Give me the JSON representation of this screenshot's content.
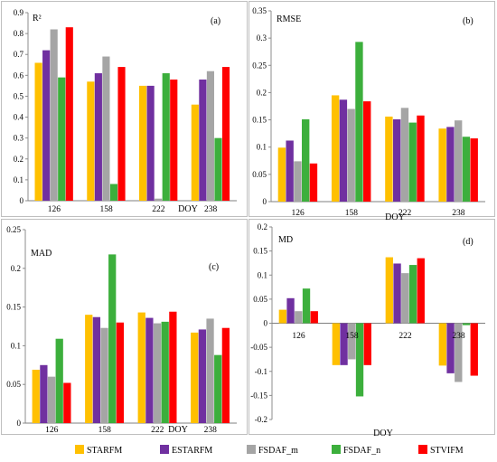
{
  "figure": {
    "xlabel": "DOY",
    "legend": [
      "STARFM",
      "ESTARFM",
      "FSDAF_m",
      "FSDAF_n",
      "STVIFM"
    ],
    "legend_position": "bottom"
  },
  "colors": {
    "series": [
      "#ffc000",
      "#7030a0",
      "#a5a5a5",
      "#3caf3c",
      "#ff0000"
    ],
    "frame": "#bfbfbf",
    "axis": "#8c8c8c",
    "zero_line": "#7f7f7f"
  },
  "chart_data": [
    {
      "type": "bar",
      "panel_label": "(a)",
      "title": "R²",
      "xlabel": "DOY",
      "categories": [
        "126",
        "158",
        "222",
        "238"
      ],
      "ylim": [
        0,
        0.9
      ],
      "ytick_step": 0.1,
      "ytick_decimals": 1,
      "ytick_labels": [
        "0",
        "0.1",
        "0.2",
        "0.3",
        "0.4",
        "0.5",
        "0.6",
        "0.7",
        "0.8",
        "0.9"
      ],
      "category_labels_position": "bottom",
      "series": [
        {
          "name": "STARFM",
          "values": [
            0.66,
            0.57,
            0.55,
            0.46
          ]
        },
        {
          "name": "ESTARFM",
          "values": [
            0.72,
            0.61,
            0.55,
            0.58
          ]
        },
        {
          "name": "FSDAF_m",
          "values": [
            0.82,
            0.69,
            0.01,
            0.62
          ]
        },
        {
          "name": "FSDAF_n",
          "values": [
            0.59,
            0.08,
            0.61,
            0.3
          ]
        },
        {
          "name": "STVIFM",
          "values": [
            0.83,
            0.64,
            0.58,
            0.64
          ]
        }
      ]
    },
    {
      "type": "bar",
      "panel_label": "(b)",
      "title": "RMSE",
      "xlabel": "DOY",
      "categories": [
        "126",
        "158",
        "222",
        "238"
      ],
      "ylim": [
        0,
        0.35
      ],
      "ytick_step": 0.05,
      "ytick_decimals": 2,
      "ytick_labels": [
        "0",
        "0.05",
        "0.1",
        "0.15",
        "0.2",
        "0.25",
        "0.3",
        "0.35"
      ],
      "category_labels_position": "bottom",
      "series": [
        {
          "name": "STARFM",
          "values": [
            0.099,
            0.195,
            0.156,
            0.134
          ]
        },
        {
          "name": "ESTARFM",
          "values": [
            0.112,
            0.187,
            0.151,
            0.137
          ]
        },
        {
          "name": "FSDAF_m",
          "values": [
            0.074,
            0.17,
            0.172,
            0.149
          ]
        },
        {
          "name": "FSDAF_n",
          "values": [
            0.151,
            0.293,
            0.145,
            0.119
          ]
        },
        {
          "name": "STVIFM",
          "values": [
            0.07,
            0.184,
            0.158,
            0.116
          ]
        }
      ]
    },
    {
      "type": "bar",
      "panel_label": "(c)",
      "title": "MAD",
      "xlabel": "DOY",
      "categories": [
        "126",
        "158",
        "222",
        "238"
      ],
      "ylim": [
        0,
        0.25
      ],
      "ytick_step": 0.05,
      "ytick_decimals": 2,
      "ytick_labels": [
        "0",
        "0.05",
        "0.1",
        "0.15",
        "0.2",
        "0.25"
      ],
      "category_labels_position": "bottom",
      "series": [
        {
          "name": "STARFM",
          "values": [
            0.069,
            0.14,
            0.143,
            0.117
          ]
        },
        {
          "name": "ESTARFM",
          "values": [
            0.075,
            0.137,
            0.136,
            0.121
          ]
        },
        {
          "name": "FSDAF_m",
          "values": [
            0.06,
            0.123,
            0.129,
            0.135
          ]
        },
        {
          "name": "FSDAF_n",
          "values": [
            0.109,
            0.218,
            0.131,
            0.088
          ]
        },
        {
          "name": "STVIFM",
          "values": [
            0.052,
            0.13,
            0.144,
            0.123
          ]
        }
      ]
    },
    {
      "type": "bar",
      "panel_label": "(d)",
      "title": "MD",
      "xlabel": "DOY",
      "categories": [
        "126",
        "158",
        "222",
        "238"
      ],
      "ylim": [
        -0.2,
        0.2
      ],
      "ytick_step": 0.05,
      "ytick_decimals": 2,
      "ytick_labels": [
        "-0.2",
        "-0.15",
        "-0.1",
        "-0.05",
        "0",
        "0.05",
        "0.1",
        "0.15",
        "0.2"
      ],
      "category_labels_position": "zero",
      "series": [
        {
          "name": "STARFM",
          "values": [
            0.028,
            -0.087,
            0.137,
            -0.088
          ]
        },
        {
          "name": "ESTARFM",
          "values": [
            0.052,
            -0.087,
            0.124,
            -0.104
          ]
        },
        {
          "name": "FSDAF_m",
          "values": [
            0.025,
            -0.075,
            0.104,
            -0.122
          ]
        },
        {
          "name": "FSDAF_n",
          "values": [
            0.072,
            -0.152,
            0.121,
            -0.004
          ]
        },
        {
          "name": "STVIFM",
          "values": [
            0.025,
            -0.087,
            0.135,
            -0.109
          ]
        }
      ]
    }
  ]
}
